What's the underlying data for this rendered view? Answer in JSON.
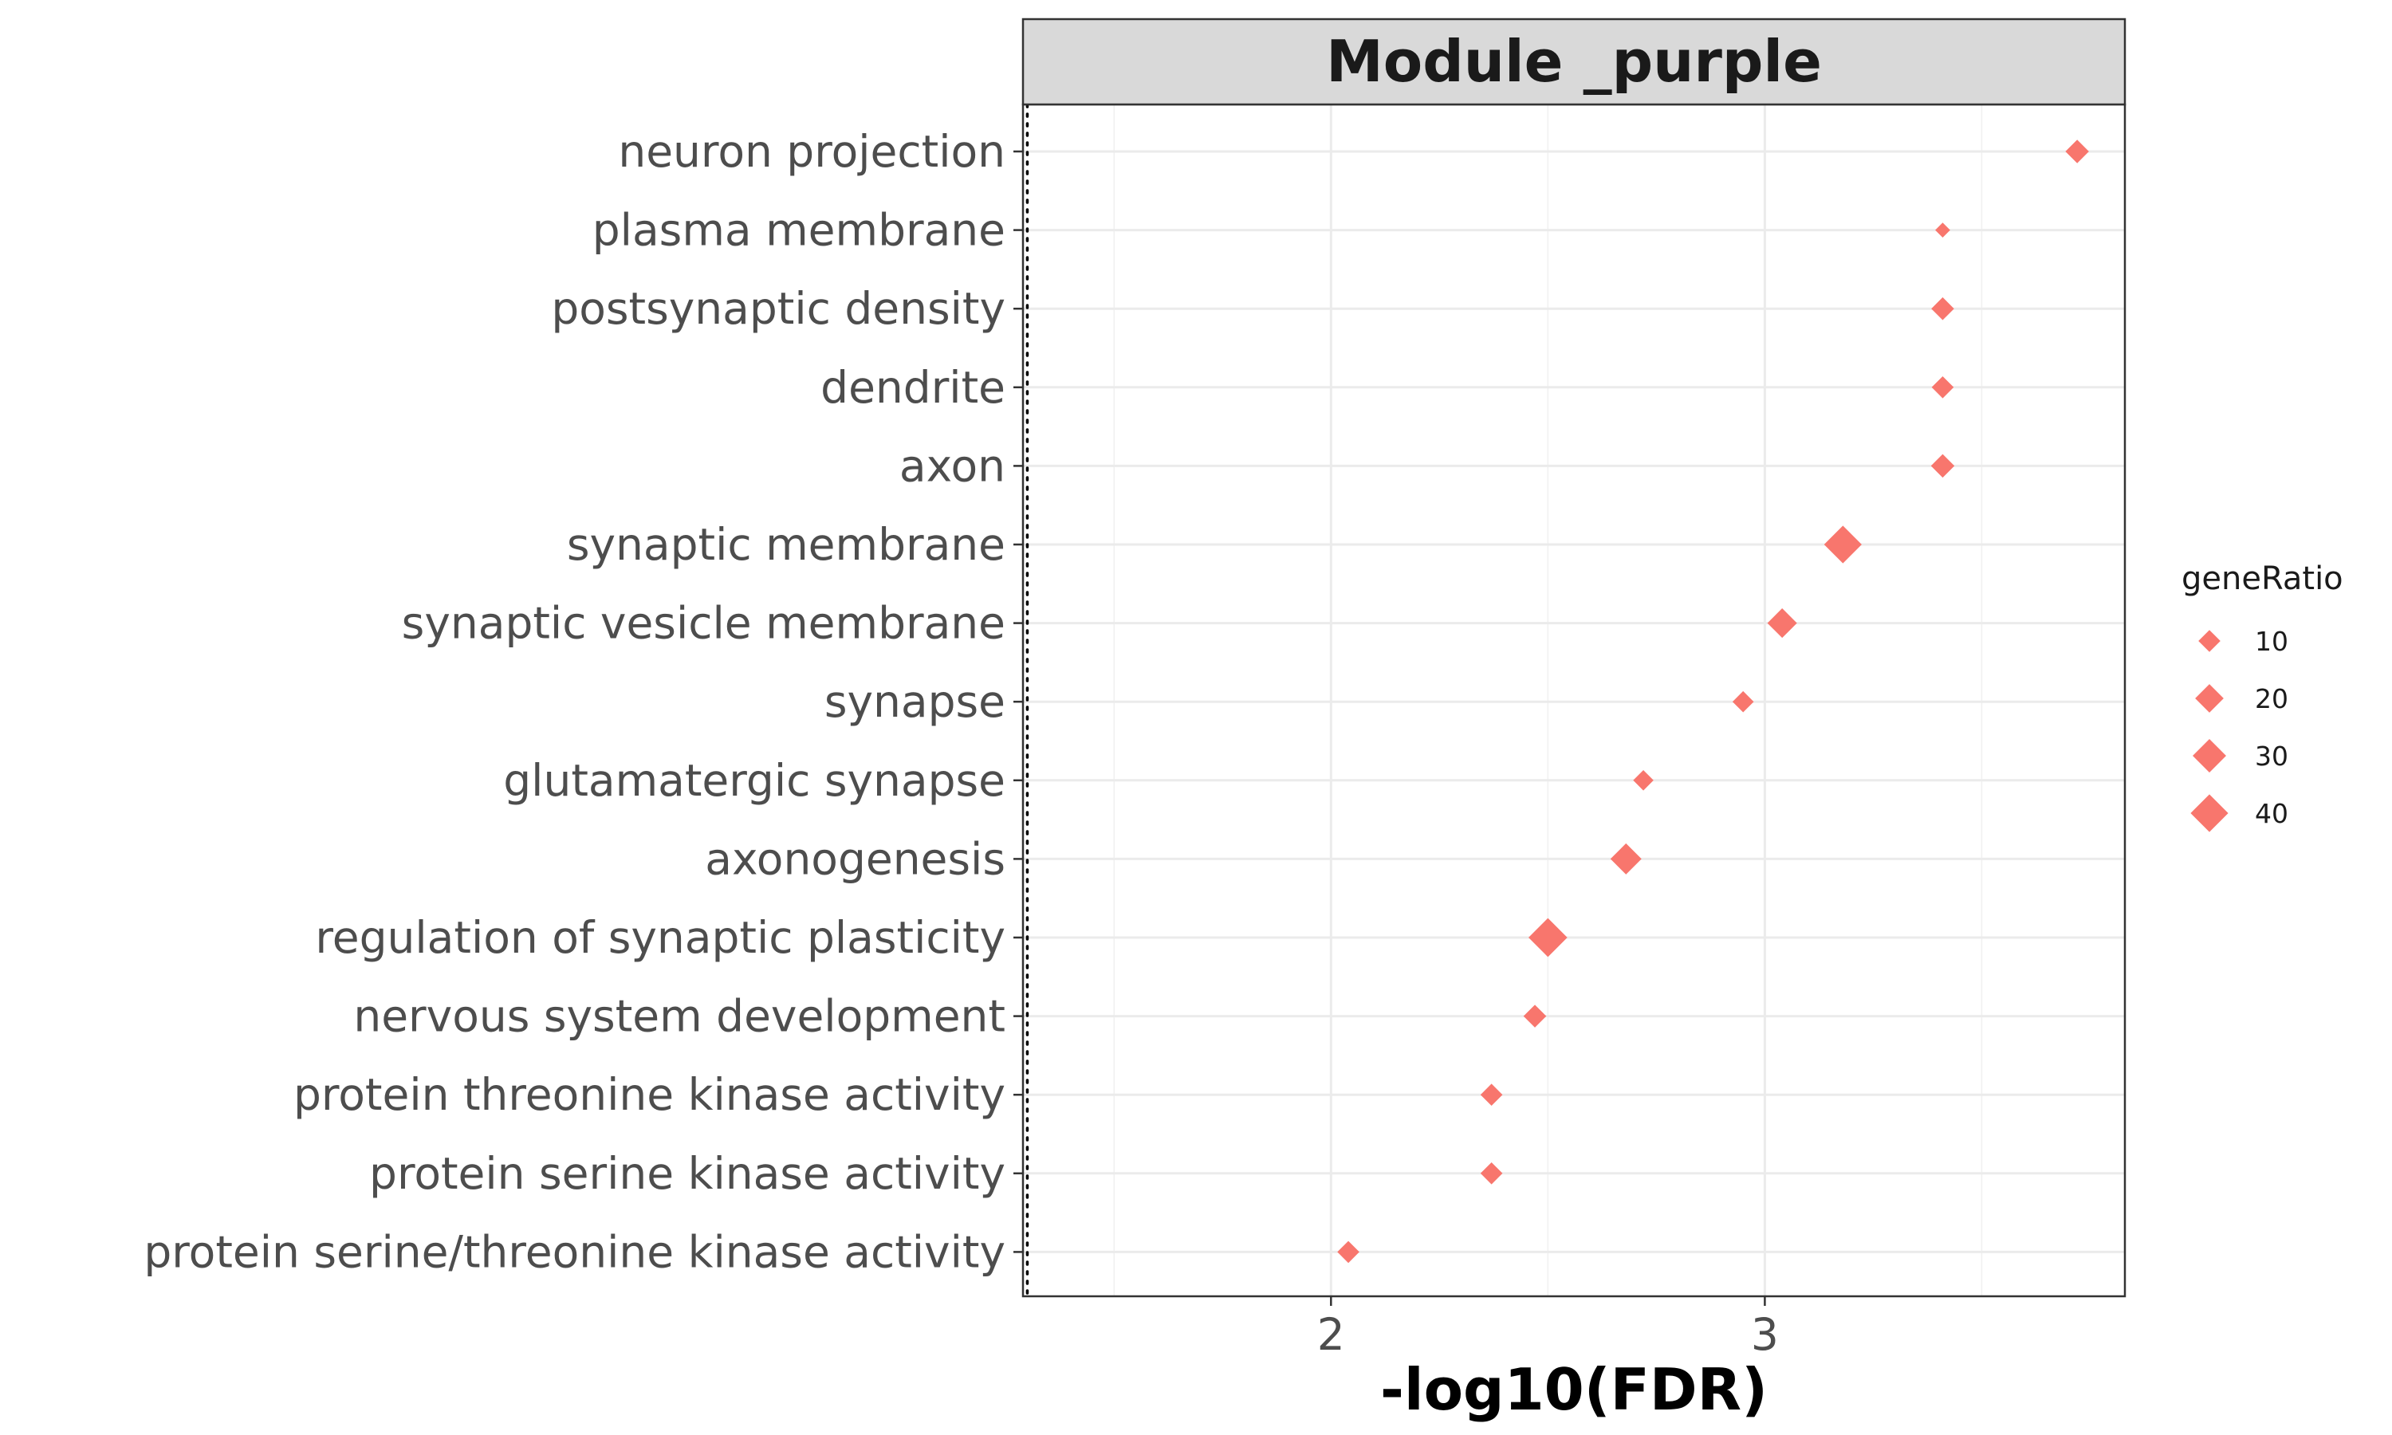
{
  "chart_data": {
    "type": "scatter",
    "title": "Module _purple",
    "xlabel": "-log10(FDR)",
    "ylabel": "",
    "xlim": [
      1.29,
      3.83
    ],
    "xticks": [
      2,
      3
    ],
    "xtick_labels": [
      "2",
      "3"
    ],
    "threshold_line": {
      "x": 1.3,
      "style": "dotted"
    },
    "grid": true,
    "marker": "diamond",
    "marker_color": "#F8766D",
    "categories": [
      "neuron projection",
      "plasma membrane",
      "postsynaptic density",
      "dendrite",
      "axon",
      "synaptic membrane",
      "synaptic vesicle membrane",
      "synapse",
      "glutamatergic synapse",
      "axonogenesis",
      "regulation of synaptic plasticity",
      "nervous system development",
      "protein threonine kinase activity",
      "protein serine kinase activity",
      "protein serine/threonine kinase activity"
    ],
    "x": [
      3.72,
      3.41,
      3.41,
      3.41,
      3.41,
      3.18,
      3.04,
      2.95,
      2.72,
      2.68,
      2.5,
      2.47,
      2.37,
      2.37,
      2.04
    ],
    "geneRatio": [
      12,
      3,
      11,
      10,
      12,
      40,
      22,
      9,
      8,
      25,
      43,
      11,
      10,
      10,
      10
    ],
    "legend": {
      "title": "geneRatio",
      "labels": [
        "10",
        "20",
        "30",
        "40"
      ],
      "values": [
        10,
        20,
        30,
        40
      ],
      "position": "right"
    }
  }
}
